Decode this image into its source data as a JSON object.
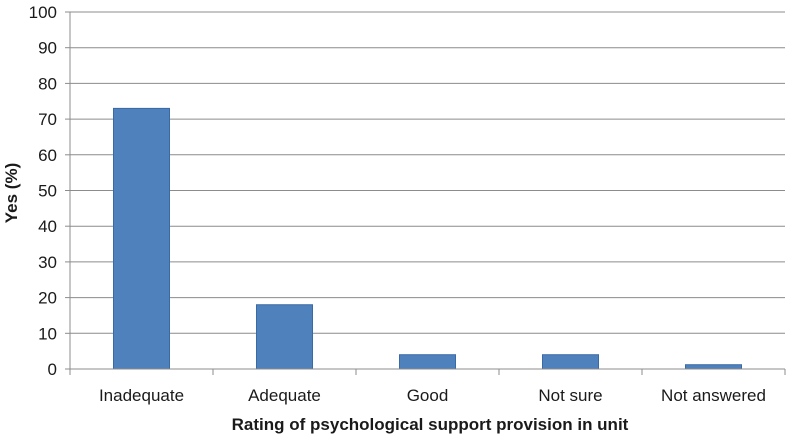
{
  "chart_data": {
    "type": "bar",
    "categories": [
      "Inadequate",
      "Adequate",
      "Good",
      "Not sure",
      "Not answered"
    ],
    "values": [
      73,
      18,
      4,
      4,
      1.2
    ],
    "title": "",
    "xlabel": "Rating of psychological support provision in unit",
    "ylabel": "Yes (%)",
    "ylim": [
      0,
      100
    ],
    "yticks": [
      0,
      10,
      20,
      30,
      40,
      50,
      60,
      70,
      80,
      90,
      100
    ],
    "grid": true,
    "legend": "none",
    "colors": {
      "bar_fill": "#4f81bd",
      "bar_stroke": "#3a6aa6",
      "grid": "#8c8c8c",
      "axis": "#8c8c8c"
    }
  }
}
